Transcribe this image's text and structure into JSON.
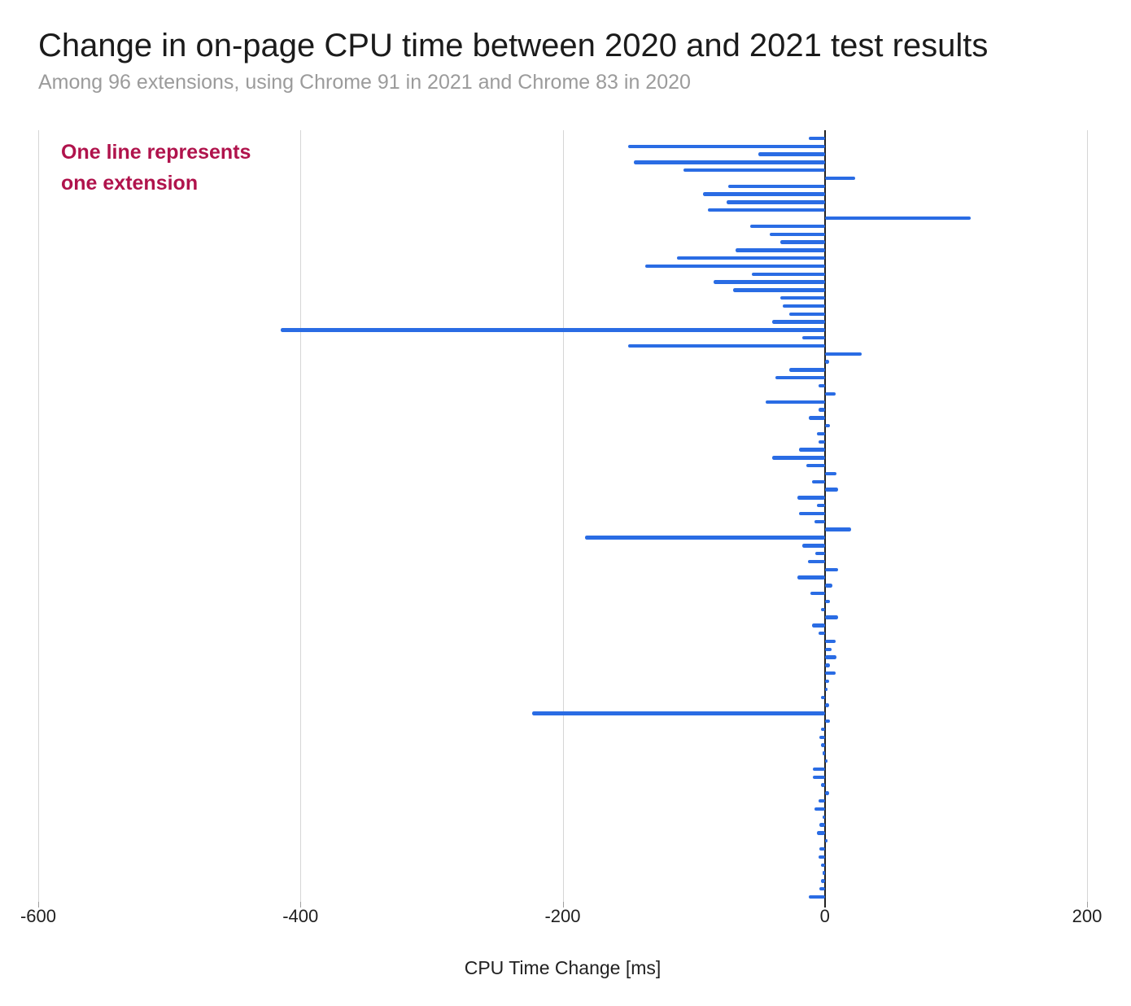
{
  "header": {
    "title": "Change in on-page CPU time between 2020 and 2021 test results",
    "subtitle": "Among 96 extensions, using Chrome 91 in 2021 and Chrome 83 in 2020"
  },
  "annotation": {
    "line1": "One line represents",
    "line2": "one extension",
    "color": "#b0134c"
  },
  "chart_data": {
    "type": "bar",
    "orientation": "horizontal",
    "title": "Change in on-page CPU time between 2020 and 2021 test results",
    "subtitle": "Among 96 extensions, using Chrome 91 in 2021 and Chrome 83 in 2020",
    "xlabel": "CPU Time Change [ms]",
    "unit": "ms",
    "xlim": [
      -600,
      200
    ],
    "x_ticks": [
      -600,
      -400,
      -200,
      0,
      200
    ],
    "grid": true,
    "bar_color": "#2a6ce4",
    "zero_line_color": "#212121",
    "n_extensions": 96,
    "values": [
      -12,
      -150,
      -51,
      -146,
      -108,
      23,
      -74,
      -93,
      -75,
      -89,
      111,
      -57,
      -42,
      -34,
      -68,
      -113,
      -137,
      -56,
      -85,
      -70,
      -34,
      -32,
      -27,
      -40,
      -415,
      -17,
      -150,
      28,
      3,
      -27,
      -38,
      -5,
      8,
      -45,
      -5,
      -12,
      4,
      -6,
      -5,
      -20,
      -40,
      -14,
      9,
      -10,
      10,
      -21,
      -6,
      -20,
      -8,
      20,
      -183,
      -17,
      -7,
      -13,
      10,
      -21,
      6,
      -11,
      4,
      -3,
      10,
      -10,
      -5,
      8,
      5,
      9,
      4,
      8,
      3,
      2,
      -3,
      3,
      -223,
      4,
      -3,
      -4,
      -3,
      -2,
      2,
      -9,
      -9,
      -3,
      3,
      -5,
      -8,
      -2,
      -4,
      -6,
      2,
      -4,
      -5,
      -3,
      -2,
      -3,
      -4,
      -12
    ]
  }
}
